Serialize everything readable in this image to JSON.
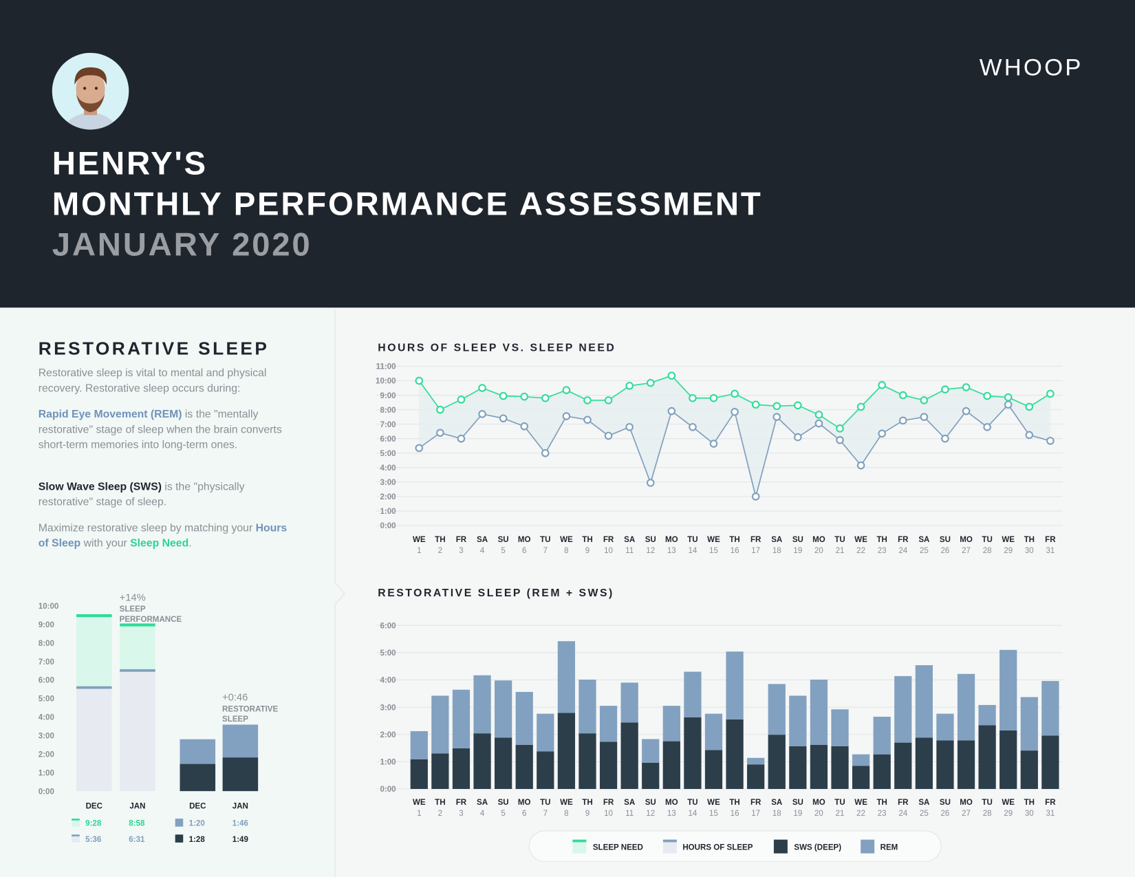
{
  "header": {
    "name": "HENRY'S",
    "title": "MONTHLY PERFORMANCE ASSESSMENT",
    "period": "JANUARY 2020",
    "logo": "WHOOP"
  },
  "sidebar": {
    "title": "RESTORATIVE SLEEP",
    "intro": "Restorative sleep is vital to mental and physical recovery. Restorative sleep occurs during:",
    "rem": {
      "term": "Rapid Eye Movement (REM)",
      "text": " is the \"mentally restorative\" stage of sleep when the brain converts short-term memories into long-term ones."
    },
    "sws": {
      "term": "Slow Wave Sleep (SWS)",
      "text": " is the \"physically restorative\" stage of sleep."
    },
    "advice": [
      "Maximize restorative sleep by matching your ",
      "Hours of Sleep",
      " with your ",
      "Sleep Need",
      "."
    ]
  },
  "chart_data": [
    {
      "type": "line",
      "title": "HOURS OF SLEEP VS. SLEEP NEED",
      "categories": [
        [
          "WE",
          "1"
        ],
        [
          "TH",
          "2"
        ],
        [
          "FR",
          "3"
        ],
        [
          "SA",
          "4"
        ],
        [
          "SU",
          "5"
        ],
        [
          "MO",
          "6"
        ],
        [
          "TU",
          "7"
        ],
        [
          "WE",
          "8"
        ],
        [
          "TH",
          "9"
        ],
        [
          "FR",
          "10"
        ],
        [
          "SA",
          "11"
        ],
        [
          "SU",
          "12"
        ],
        [
          "MO",
          "13"
        ],
        [
          "TU",
          "14"
        ],
        [
          "WE",
          "15"
        ],
        [
          "TH",
          "16"
        ],
        [
          "FR",
          "17"
        ],
        [
          "SA",
          "18"
        ],
        [
          "SU",
          "19"
        ],
        [
          "MO",
          "20"
        ],
        [
          "TU",
          "21"
        ],
        [
          "WE",
          "22"
        ],
        [
          "TH",
          "23"
        ],
        [
          "FR",
          "24"
        ],
        [
          "SA",
          "25"
        ],
        [
          "SU",
          "26"
        ],
        [
          "MO",
          "27"
        ],
        [
          "TU",
          "28"
        ],
        [
          "WE",
          "29"
        ],
        [
          "TH",
          "30"
        ],
        [
          "FR",
          "31"
        ]
      ],
      "series": [
        {
          "color": "#2fdc98",
          "values": [
            10.0,
            8.0,
            8.7,
            9.5,
            8.95,
            8.9,
            8.8,
            9.35,
            8.65,
            8.65,
            9.65,
            9.85,
            10.35,
            8.8,
            8.8,
            9.1,
            8.35,
            8.25,
            8.3,
            7.65,
            6.7,
            8.2,
            9.7,
            9.0,
            8.65,
            9.4,
            9.55,
            8.95,
            8.85,
            8.2,
            9.1
          ]
        },
        {
          "color": "#7f9fbd",
          "values": [
            5.35,
            6.4,
            6.0,
            7.7,
            7.4,
            6.85,
            5.0,
            7.55,
            7.3,
            6.2,
            6.8,
            2.95,
            7.9,
            6.8,
            5.65,
            7.85,
            2.0,
            7.5,
            6.1,
            7.05,
            5.9,
            4.15,
            6.35,
            7.25,
            7.5,
            6.0,
            7.9,
            6.8,
            8.35,
            6.25,
            5.85
          ]
        }
      ],
      "ylim": [
        0,
        11
      ],
      "yticks": [
        {
          "value": 0,
          "label": "0:00"
        },
        {
          "value": 1,
          "label": "1:00"
        },
        {
          "value": 2,
          "label": "2:00"
        },
        {
          "value": 3,
          "label": "3:00"
        },
        {
          "value": 4,
          "label": "4:00"
        },
        {
          "value": 5,
          "label": "5:00"
        },
        {
          "value": 6,
          "label": "6:00"
        },
        {
          "value": 7,
          "label": "7:00"
        },
        {
          "value": 8,
          "label": "8:00"
        },
        {
          "value": 9,
          "label": "9:00"
        },
        {
          "value": 10,
          "label": "10:00"
        },
        {
          "value": 11,
          "label": "11:00"
        }
      ],
      "grid": true
    },
    {
      "type": "stacked-bar",
      "title": "RESTORATIVE SLEEP (REM + SWS)",
      "categories": [
        [
          "WE",
          "1"
        ],
        [
          "TH",
          "2"
        ],
        [
          "FR",
          "3"
        ],
        [
          "SA",
          "4"
        ],
        [
          "SU",
          "5"
        ],
        [
          "MO",
          "6"
        ],
        [
          "TU",
          "7"
        ],
        [
          "WE",
          "8"
        ],
        [
          "TH",
          "9"
        ],
        [
          "FR",
          "10"
        ],
        [
          "SA",
          "11"
        ],
        [
          "SU",
          "12"
        ],
        [
          "MO",
          "13"
        ],
        [
          "TU",
          "14"
        ],
        [
          "WE",
          "15"
        ],
        [
          "TH",
          "16"
        ],
        [
          "FR",
          "17"
        ],
        [
          "SA",
          "18"
        ],
        [
          "SU",
          "19"
        ],
        [
          "MO",
          "20"
        ],
        [
          "TU",
          "21"
        ],
        [
          "WE",
          "22"
        ],
        [
          "TH",
          "23"
        ],
        [
          "FR",
          "24"
        ],
        [
          "SA",
          "25"
        ],
        [
          "SU",
          "26"
        ],
        [
          "MO",
          "27"
        ],
        [
          "TU",
          "28"
        ],
        [
          "WE",
          "29"
        ],
        [
          "TH",
          "30"
        ],
        [
          "FR",
          "31"
        ]
      ],
      "series": [
        {
          "color": "#2c3e4a",
          "values": [
            1.09,
            1.3,
            1.49,
            2.04,
            1.88,
            1.62,
            1.38,
            2.79,
            2.04,
            1.73,
            2.44,
            0.96,
            1.75,
            2.63,
            1.43,
            2.55,
            0.9,
            1.99,
            1.57,
            1.62,
            1.57,
            0.85,
            1.27,
            1.7,
            1.88,
            1.78,
            1.78,
            2.34,
            2.15,
            1.41,
            1.96
          ]
        },
        {
          "color": "#82a1c0",
          "values": [
            1.03,
            2.12,
            2.15,
            2.13,
            2.1,
            1.94,
            1.38,
            2.63,
            1.97,
            1.32,
            1.46,
            0.87,
            1.3,
            1.67,
            1.33,
            2.49,
            0.24,
            1.86,
            1.85,
            2.39,
            1.35,
            0.42,
            1.38,
            2.44,
            2.66,
            0.98,
            2.44,
            0.74,
            2.95,
            1.96,
            2.0
          ]
        }
      ],
      "ylim": [
        0,
        6
      ],
      "yticks": [
        {
          "value": 0,
          "label": "0:00"
        },
        {
          "value": 1,
          "label": "1:00"
        },
        {
          "value": 2,
          "label": "2:00"
        },
        {
          "value": 3,
          "label": "3:00"
        },
        {
          "value": 4,
          "label": "4:00"
        },
        {
          "value": 5,
          "label": "5:00"
        },
        {
          "value": 6,
          "label": "6:00"
        }
      ],
      "grid": true
    },
    {
      "type": "comparison-bar",
      "categories": [
        "DEC",
        "JAN",
        "DEC",
        "JAN"
      ],
      "series": [
        {
          "name": "SLEEP NEED",
          "color": "#2fdc98",
          "values": [
            9.47,
            8.97,
            null,
            null
          ],
          "value_labels": [
            "9:28",
            "8:58",
            null,
            null
          ]
        },
        {
          "name": "HOURS OF SLEEP",
          "color": "#7f9fbd",
          "values": [
            5.6,
            6.52,
            null,
            null
          ],
          "value_labels": [
            "5:36",
            "6:31",
            null,
            null
          ]
        },
        {
          "name": "SWS (DEEP)",
          "color": "#2c3e4a",
          "values": [
            null,
            null,
            1.47,
            1.82
          ],
          "value_labels": [
            null,
            null,
            "1:28",
            "1:49"
          ]
        },
        {
          "name": "REM",
          "color": "#82a1c0",
          "values": [
            null,
            null,
            1.33,
            1.77
          ],
          "value_labels": [
            null,
            null,
            "1:20",
            "1:46"
          ]
        }
      ],
      "annotations": [
        [
          "+14%",
          "SLEEP",
          "PERFORMANCE"
        ],
        [
          "+0:46",
          "RESTORATIVE",
          "SLEEP"
        ]
      ],
      "ylim": [
        0,
        10
      ],
      "yticks": [
        {
          "value": 0,
          "label": "0:00"
        },
        {
          "value": 1,
          "label": "1:00"
        },
        {
          "value": 2,
          "label": "2:00"
        },
        {
          "value": 3,
          "label": "3:00"
        },
        {
          "value": 4,
          "label": "4:00"
        },
        {
          "value": 5,
          "label": "5:00"
        },
        {
          "value": 6,
          "label": "6:00"
        },
        {
          "value": 7,
          "label": "7:00"
        },
        {
          "value": 8,
          "label": "8:00"
        },
        {
          "value": 9,
          "label": "9:00"
        },
        {
          "value": 10,
          "label": "10:00"
        }
      ],
      "grid": false
    }
  ]
}
